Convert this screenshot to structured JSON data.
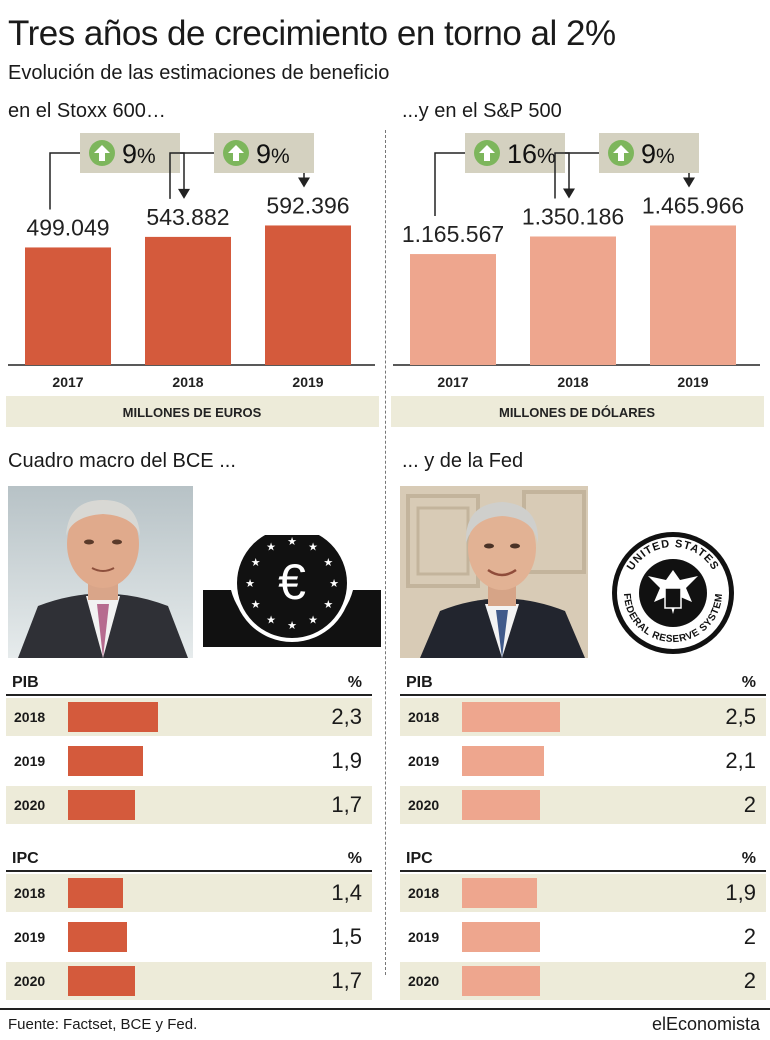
{
  "title": "Tres años de crecimiento en torno al 2%",
  "subtitle": "Evolución de las estimaciones de beneficio",
  "colors": {
    "euro": "#d45a3c",
    "usd": "#eea68e",
    "band": "#edebd9",
    "arrow_badge": "#d4d1c0",
    "up_icon": "#7db65c"
  },
  "chart_data": [
    {
      "type": "bar",
      "title": "en el Stoxx 600…",
      "categories": [
        "2017",
        "2018",
        "2019"
      ],
      "values": [
        499049,
        543882,
        592396
      ],
      "value_labels": [
        "499.049",
        "543.882",
        "592.396"
      ],
      "changes": [
        "9",
        "9"
      ],
      "unit": "MILLONES DE EUROS",
      "color": "#d45a3c"
    },
    {
      "type": "bar",
      "title": "...y en el S&P 500",
      "categories": [
        "2017",
        "2018",
        "2019"
      ],
      "values": [
        1165567,
        1350186,
        1465966
      ],
      "value_labels": [
        "1.165.567",
        "1.350.186",
        "1.465.966"
      ],
      "changes": [
        "16",
        "9"
      ],
      "unit": "MILLONES DE DÓLARES",
      "color": "#eea68e"
    },
    {
      "type": "bar",
      "title": "PIB",
      "section": "Cuadro macro del BCE ...",
      "unit": "%",
      "categories": [
        "2018",
        "2019",
        "2020"
      ],
      "values": [
        2.3,
        1.9,
        1.7
      ],
      "value_labels": [
        "2,3",
        "1,9",
        "1,7"
      ],
      "color": "#d45a3c"
    },
    {
      "type": "bar",
      "title": "IPC",
      "section": "Cuadro macro del BCE ...",
      "unit": "%",
      "categories": [
        "2018",
        "2019",
        "2020"
      ],
      "values": [
        1.4,
        1.5,
        1.7
      ],
      "value_labels": [
        "1,4",
        "1,5",
        "1,7"
      ],
      "color": "#d45a3c"
    },
    {
      "type": "bar",
      "title": "PIB",
      "section": "... y de la Fed",
      "unit": "%",
      "categories": [
        "2018",
        "2019",
        "2020"
      ],
      "values": [
        2.5,
        2.1,
        2
      ],
      "value_labels": [
        "2,5",
        "2,1",
        "2"
      ],
      "color": "#eea68e"
    },
    {
      "type": "bar",
      "title": "IPC",
      "section": "... y de la Fed",
      "unit": "%",
      "categories": [
        "2018",
        "2019",
        "2020"
      ],
      "values": [
        1.9,
        2,
        2
      ],
      "value_labels": [
        "1,9",
        "2",
        "2"
      ],
      "color": "#eea68e"
    }
  ],
  "sections": {
    "ecb": "Cuadro macro del BCE ...",
    "fed": "... y de la Fed"
  },
  "seals": {
    "fed_ring_top": "UNITED STATES",
    "fed_ring_bottom": "FEDERAL RESERVE SYSTEM"
  },
  "footer": {
    "source": "Fuente: Factset, BCE y Fed.",
    "brand": "elEconomista"
  },
  "icons": [
    "up-arrow-circle-icon",
    "down-arrow-icon",
    "euro-emblem-icon",
    "fed-seal-icon",
    "portrait-photo"
  ]
}
